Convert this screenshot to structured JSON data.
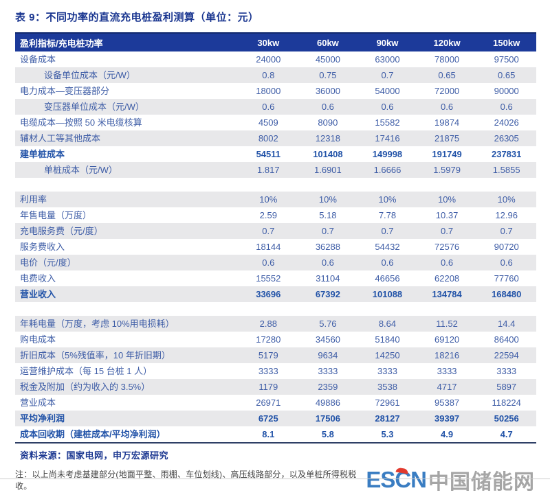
{
  "page": {
    "title": "表 9：不同功率的直流充电桩盈利测算（单位：元）",
    "source": "资料来源：国家电网，申万宏源研究",
    "note": "注：以上尚未考虑基建部分(地面平整、雨棚、车位划线)、高压线路部分，以及单桩所得税税收。",
    "logo": {
      "escn": "ESCN",
      "cn": "中国储能网"
    }
  },
  "table": {
    "header": {
      "label": "盈利指标/充电桩功率",
      "columns": [
        "30kw",
        "60kw",
        "90kw",
        "120kw",
        "150kw"
      ]
    },
    "sections": [
      {
        "rows": [
          {
            "label": "设备成本",
            "values": [
              "24000",
              "45000",
              "63000",
              "78000",
              "97500"
            ]
          },
          {
            "label": "设备单位成本（元/W）",
            "values": [
              "0.8",
              "0.75",
              "0.7",
              "0.65",
              "0.65"
            ],
            "indent": true
          },
          {
            "label": "电力成本—变压器部分",
            "values": [
              "18000",
              "36000",
              "54000",
              "72000",
              "90000"
            ]
          },
          {
            "label": "变压器单位成本（元/W）",
            "values": [
              "0.6",
              "0.6",
              "0.6",
              "0.6",
              "0.6"
            ],
            "indent": true
          },
          {
            "label": "电缆成本—按照 50 米电缆核算",
            "values": [
              "4509",
              "8090",
              "15582",
              "19874",
              "24026"
            ]
          },
          {
            "label": "辅材人工等其他成本",
            "values": [
              "8002",
              "12318",
              "17416",
              "21875",
              "26305"
            ]
          },
          {
            "label": "建单桩成本",
            "values": [
              "54511",
              "101408",
              "149998",
              "191749",
              "237831"
            ],
            "bold": true
          },
          {
            "label": "单桩成本（元/W）",
            "values": [
              "1.817",
              "1.6901",
              "1.6666",
              "1.5979",
              "1.5855"
            ],
            "indent": true
          }
        ]
      },
      {
        "rows": [
          {
            "label": "利用率",
            "values": [
              "10%",
              "10%",
              "10%",
              "10%",
              "10%"
            ]
          },
          {
            "label": "年售电量（万度）",
            "values": [
              "2.59",
              "5.18",
              "7.78",
              "10.37",
              "12.96"
            ]
          },
          {
            "label": "充电服务费（元/度）",
            "values": [
              "0.7",
              "0.7",
              "0.7",
              "0.7",
              "0.7"
            ]
          },
          {
            "label": "服务费收入",
            "values": [
              "18144",
              "36288",
              "54432",
              "72576",
              "90720"
            ]
          },
          {
            "label": "电价（元/度）",
            "values": [
              "0.6",
              "0.6",
              "0.6",
              "0.6",
              "0.6"
            ]
          },
          {
            "label": "电费收入",
            "values": [
              "15552",
              "31104",
              "46656",
              "62208",
              "77760"
            ]
          },
          {
            "label": "营业收入",
            "values": [
              "33696",
              "67392",
              "101088",
              "134784",
              "168480"
            ],
            "bold": true
          }
        ]
      },
      {
        "rows": [
          {
            "label": "年耗电量（万度，考虑 10%用电损耗）",
            "values": [
              "2.88",
              "5.76",
              "8.64",
              "11.52",
              "14.4"
            ]
          },
          {
            "label": "购电成本",
            "values": [
              "17280",
              "34560",
              "51840",
              "69120",
              "86400"
            ]
          },
          {
            "label": "折旧成本（5%残值率，10 年折旧期）",
            "values": [
              "5179",
              "9634",
              "14250",
              "18216",
              "22594"
            ]
          },
          {
            "label": "运营维护成本（每 15 台桩 1 人）",
            "values": [
              "3333",
              "3333",
              "3333",
              "3333",
              "3333"
            ]
          },
          {
            "label": "税金及附加（约为收入的 3.5%）",
            "values": [
              "1179",
              "2359",
              "3538",
              "4717",
              "5897"
            ]
          },
          {
            "label": "营业成本",
            "values": [
              "26971",
              "49886",
              "72961",
              "95387",
              "118224"
            ]
          },
          {
            "label": "平均净利润",
            "values": [
              "6725",
              "17506",
              "28127",
              "39397",
              "50256"
            ],
            "bold": true
          },
          {
            "label": "成本回收期（建桩成本/平均净利润）",
            "values": [
              "8.1",
              "5.8",
              "5.3",
              "4.9",
              "4.7"
            ],
            "bold": true
          }
        ]
      }
    ]
  },
  "colors": {
    "title_blue": "#1a3690",
    "header_bg": "#1c3a9a",
    "header_text": "#ffffff",
    "text_blue": "#3d5ca6",
    "bold_blue": "#2253a8",
    "row_gray": "#e8e8ea",
    "divider_dark": "#2e3f66",
    "note_gray": "#454545",
    "logo_blue": "#3a7dc2",
    "logo_gray": "#a5a5a5",
    "logo_red": "#e23a2e",
    "bottom_line": "#cccccc"
  }
}
